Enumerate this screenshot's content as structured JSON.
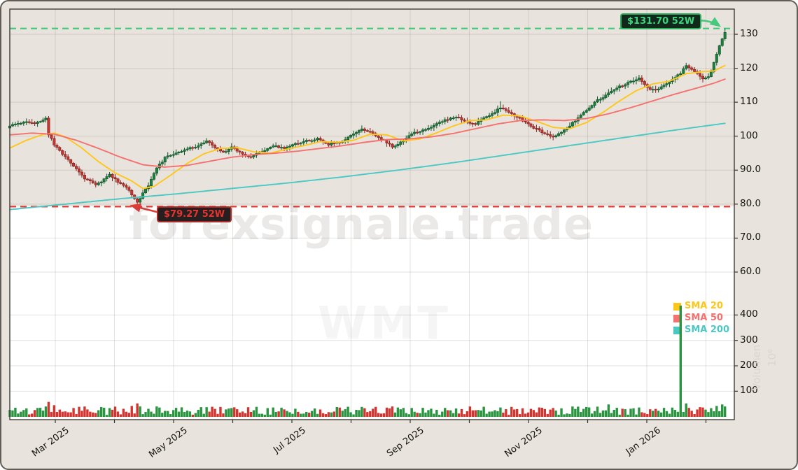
{
  "watermark": {
    "site": "forexsignale.trade",
    "symbol": "WMT"
  },
  "annotations": {
    "high_badge": "$131.70 52W",
    "low_badge": "$79.27 52W",
    "high_value": 131.7,
    "low_value": 79.27
  },
  "legend": [
    {
      "label": "SMA 20",
      "color": "#ffc61a"
    },
    {
      "label": "SMA 50",
      "color": "#f4716f"
    },
    {
      "label": "SMA 200",
      "color": "#4cc8c4"
    }
  ],
  "axes": {
    "price_ticks": [
      "130",
      "120",
      "110",
      "100",
      "90.0",
      "80.0",
      "70.0",
      "60.0"
    ],
    "volume_ticks": [
      "400",
      "300",
      "200",
      "100"
    ],
    "month_labels": [
      "Mar 2025",
      "May 2025",
      "Jul 2025",
      "Sep 2025",
      "Nov 2025",
      "Jan 2026"
    ],
    "volume_axis_label": "Volumen",
    "volume_axis_scale": "10⁶"
  },
  "colors": {
    "figure_bg": "#e8e4dd",
    "plot_bg": "#ffffff",
    "candle_up_fill": "#1e7e3e",
    "candle_up_stroke": "#0f5128",
    "candle_down_fill": "#c63631",
    "candle_down_stroke": "#7e201c",
    "volume_up": "#2a9440",
    "volume_down": "#d2352f",
    "sma20": "#ffc61a",
    "sma50": "#f4716f",
    "sma200": "#4cc8c4",
    "dashed_high": "#44c97d",
    "dashed_low": "#e23b36",
    "badge_high_bg": "#10291b",
    "badge_high_border": "#2fae5d",
    "badge_high_text": "#3ed47f",
    "badge_low_bg": "#271f1f",
    "badge_low_border": "#a92a26",
    "badge_low_text": "#e43530",
    "axis_text": "#14140f",
    "grid": "rgba(100,95,85,0.18)",
    "border": "#3f3d38"
  },
  "chart_data": {
    "type": "candlestick+volume",
    "symbol": "WMT",
    "num_days": 259,
    "date_start": "Feb 2025",
    "date_end": "Feb 2026",
    "price_axis_range": [
      60,
      130
    ],
    "volume_axis_range": [
      100,
      400
    ],
    "high_52w": 131.7,
    "low_52w": 79.27,
    "close_waypoints": [
      [
        0,
        103.0
      ],
      [
        3,
        103.8
      ],
      [
        6,
        104.3
      ],
      [
        9,
        103.6
      ],
      [
        13,
        105.2
      ],
      [
        14,
        100.6
      ],
      [
        16,
        97.6
      ],
      [
        19,
        94.6
      ],
      [
        23,
        91.2
      ],
      [
        27,
        87.6
      ],
      [
        31,
        85.6
      ],
      [
        33,
        86.6
      ],
      [
        36,
        88.8
      ],
      [
        39,
        86.6
      ],
      [
        42,
        85.0
      ],
      [
        44,
        82.6
      ],
      [
        46,
        80.4
      ],
      [
        48,
        83.2
      ],
      [
        50,
        85.6
      ],
      [
        53,
        90.6
      ],
      [
        56,
        93.6
      ],
      [
        60,
        95.2
      ],
      [
        64,
        96.2
      ],
      [
        68,
        97.2
      ],
      [
        71,
        98.6
      ],
      [
        74,
        96.6
      ],
      [
        77,
        95.2
      ],
      [
        80,
        96.8
      ],
      [
        84,
        94.8
      ],
      [
        87,
        93.9
      ],
      [
        91,
        95.6
      ],
      [
        95,
        97.2
      ],
      [
        99,
        96.4
      ],
      [
        103,
        97.8
      ],
      [
        107,
        98.6
      ],
      [
        111,
        99.2
      ],
      [
        115,
        97.6
      ],
      [
        119,
        98.2
      ],
      [
        123,
        100.2
      ],
      [
        127,
        102.2
      ],
      [
        131,
        100.8
      ],
      [
        135,
        98.8
      ],
      [
        138,
        96.9
      ],
      [
        141,
        98.2
      ],
      [
        145,
        100.8
      ],
      [
        149,
        101.8
      ],
      [
        153,
        103.2
      ],
      [
        157,
        104.8
      ],
      [
        161,
        105.8
      ],
      [
        165,
        104.2
      ],
      [
        168,
        103.6
      ],
      [
        170,
        104.8
      ],
      [
        174,
        106.6
      ],
      [
        177,
        108.4
      ],
      [
        180,
        107.0
      ],
      [
        184,
        105.2
      ],
      [
        188,
        103.0
      ],
      [
        192,
        101.2
      ],
      [
        196,
        99.6
      ],
      [
        200,
        101.8
      ],
      [
        204,
        104.6
      ],
      [
        208,
        107.6
      ],
      [
        212,
        110.6
      ],
      [
        216,
        112.6
      ],
      [
        220,
        114.6
      ],
      [
        224,
        116.0
      ],
      [
        227,
        116.9
      ],
      [
        230,
        114.2
      ],
      [
        233,
        113.4
      ],
      [
        236,
        115.0
      ],
      [
        239,
        116.8
      ],
      [
        242,
        118.6
      ],
      [
        244,
        120.6
      ],
      [
        247,
        119.2
      ],
      [
        250,
        116.9
      ],
      [
        252,
        117.5
      ],
      [
        253,
        119.0
      ],
      [
        254,
        121.5
      ],
      [
        255,
        124.0
      ],
      [
        256,
        126.5
      ],
      [
        257,
        128.8
      ],
      [
        258,
        130.7
      ]
    ],
    "sma20_waypoints": [
      [
        0,
        96.5
      ],
      [
        6,
        98.8
      ],
      [
        12,
        100.5
      ],
      [
        16,
        100.9
      ],
      [
        20,
        99.8
      ],
      [
        26,
        96.5
      ],
      [
        32,
        92.5
      ],
      [
        38,
        89.2
      ],
      [
        44,
        86.8
      ],
      [
        48,
        84.6
      ],
      [
        52,
        85.2
      ],
      [
        58,
        88.5
      ],
      [
        64,
        92.0
      ],
      [
        70,
        94.8
      ],
      [
        76,
        96.4
      ],
      [
        82,
        96.6
      ],
      [
        88,
        95.4
      ],
      [
        94,
        95.0
      ],
      [
        100,
        96.2
      ],
      [
        106,
        97.2
      ],
      [
        112,
        98.4
      ],
      [
        118,
        98.2
      ],
      [
        124,
        98.8
      ],
      [
        130,
        100.6
      ],
      [
        136,
        100.4
      ],
      [
        142,
        98.6
      ],
      [
        148,
        99.2
      ],
      [
        154,
        101.0
      ],
      [
        160,
        103.0
      ],
      [
        166,
        104.6
      ],
      [
        172,
        104.8
      ],
      [
        178,
        106.2
      ],
      [
        184,
        106.0
      ],
      [
        190,
        104.4
      ],
      [
        196,
        102.6
      ],
      [
        202,
        102.2
      ],
      [
        208,
        104.0
      ],
      [
        214,
        107.0
      ],
      [
        220,
        110.4
      ],
      [
        226,
        113.4
      ],
      [
        232,
        115.4
      ],
      [
        238,
        116.2
      ],
      [
        244,
        118.4
      ],
      [
        250,
        119.0
      ],
      [
        254,
        119.2
      ],
      [
        258,
        120.8
      ]
    ],
    "sma50_waypoints": [
      [
        0,
        100.4
      ],
      [
        8,
        100.9
      ],
      [
        16,
        100.6
      ],
      [
        24,
        98.8
      ],
      [
        32,
        96.4
      ],
      [
        40,
        93.8
      ],
      [
        48,
        91.6
      ],
      [
        56,
        90.9
      ],
      [
        64,
        91.4
      ],
      [
        72,
        92.6
      ],
      [
        80,
        93.8
      ],
      [
        88,
        94.6
      ],
      [
        96,
        95.0
      ],
      [
        104,
        95.6
      ],
      [
        112,
        96.4
      ],
      [
        120,
        97.2
      ],
      [
        128,
        98.2
      ],
      [
        136,
        99.0
      ],
      [
        144,
        99.2
      ],
      [
        152,
        99.8
      ],
      [
        160,
        100.8
      ],
      [
        168,
        102.2
      ],
      [
        176,
        103.6
      ],
      [
        184,
        104.6
      ],
      [
        192,
        104.8
      ],
      [
        200,
        104.6
      ],
      [
        208,
        105.2
      ],
      [
        216,
        106.6
      ],
      [
        224,
        108.4
      ],
      [
        232,
        110.4
      ],
      [
        240,
        112.4
      ],
      [
        248,
        114.2
      ],
      [
        254,
        115.6
      ],
      [
        258,
        116.8
      ]
    ],
    "sma200_waypoints": [
      [
        0,
        78.4
      ],
      [
        20,
        80.0
      ],
      [
        40,
        81.6
      ],
      [
        60,
        83.0
      ],
      [
        80,
        84.6
      ],
      [
        100,
        86.2
      ],
      [
        120,
        88.0
      ],
      [
        140,
        90.0
      ],
      [
        160,
        92.2
      ],
      [
        180,
        94.6
      ],
      [
        200,
        97.0
      ],
      [
        220,
        99.4
      ],
      [
        240,
        101.8
      ],
      [
        258,
        103.8
      ]
    ],
    "volume_base_range": [
      7,
      40
    ],
    "volume_spikes": {
      "13": 40,
      "14": 58,
      "16": 45,
      "23": 34,
      "44": 42,
      "46": 52,
      "47": 40,
      "53": 40,
      "95": 36,
      "138": 40,
      "145": 34,
      "161": 32,
      "177": 36,
      "196": 34,
      "208": 38,
      "216": 48,
      "227": 36,
      "242": 437,
      "244": 52,
      "250": 36,
      "255": 42,
      "257": 48,
      "258": 40
    },
    "special_candles": {
      "13": {
        "high": 105.9
      },
      "46": {
        "low": 79.27
      },
      "177": {
        "high": 110.3
      },
      "196": {
        "low": 98.8
      },
      "258": {
        "high": 131.7
      }
    }
  }
}
